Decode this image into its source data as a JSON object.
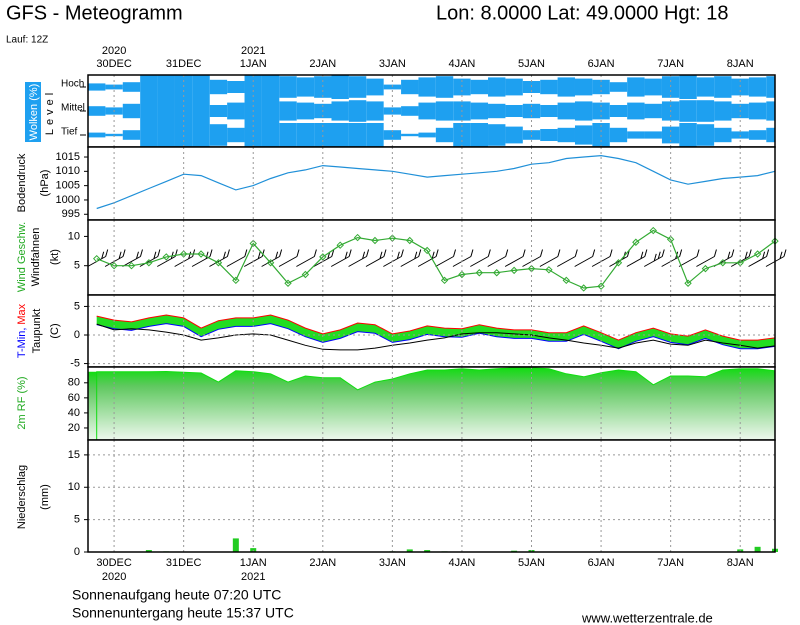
{
  "header": {
    "title": "GFS - Meteogramm",
    "location": "Lon: 8.0000 Lat: 49.0000 Hgt: 18",
    "run": "Lauf: 12Z"
  },
  "footer": {
    "sunrise": "Sonnenaufgang heute 07:20 UTC",
    "sunset": "Sonnenuntergang heute 15:37 UTC",
    "source": "www.wetterzentrale.de"
  },
  "time_axis": {
    "xlim": [
      -9,
      228
    ],
    "x": [
      -6,
      0,
      6,
      12,
      18,
      24,
      30,
      36,
      42,
      48,
      54,
      60,
      66,
      72,
      78,
      84,
      90,
      96,
      102,
      108,
      114,
      120,
      126,
      132,
      138,
      144,
      150,
      156,
      162,
      168,
      174,
      180,
      186,
      192,
      198,
      204,
      210,
      216,
      222,
      228
    ],
    "xticks": [
      {
        "value": 0,
        "label": "30DEC"
      },
      {
        "value": 24,
        "label": "31DEC"
      },
      {
        "value": 48,
        "label": "1JAN"
      },
      {
        "value": 72,
        "label": "2JAN"
      },
      {
        "value": 96,
        "label": "3JAN"
      },
      {
        "value": 120,
        "label": "4JAN"
      },
      {
        "value": 144,
        "label": "5JAN"
      },
      {
        "value": 168,
        "label": "6JAN"
      },
      {
        "value": 192,
        "label": "7JAN"
      },
      {
        "value": 216,
        "label": "8JAN"
      }
    ],
    "year_labels": [
      {
        "value": 0,
        "label": "2020"
      },
      {
        "value": 48,
        "label": "2021"
      }
    ]
  },
  "chart_data": [
    {
      "type": "clouds",
      "ylabel": [
        "Wolken (%)",
        "Level"
      ],
      "ylim": [
        0,
        100
      ],
      "grid": false,
      "series": [
        {
          "name": "Hoch",
          "color": "#1ea0f0",
          "values": [
            30,
            20,
            40,
            100,
            100,
            100,
            100,
            60,
            50,
            100,
            100,
            90,
            80,
            90,
            100,
            90,
            70,
            20,
            60,
            80,
            90,
            70,
            60,
            80,
            70,
            50,
            60,
            80,
            70,
            60,
            40,
            80,
            70,
            90,
            100,
            80,
            90,
            70,
            80,
            90
          ]
        },
        {
          "name": "Mittel",
          "color": "#1ea0f0",
          "values": [
            40,
            30,
            60,
            100,
            100,
            100,
            100,
            50,
            70,
            100,
            100,
            80,
            70,
            60,
            80,
            90,
            80,
            30,
            40,
            70,
            80,
            80,
            70,
            60,
            50,
            60,
            50,
            70,
            80,
            70,
            50,
            70,
            60,
            80,
            90,
            90,
            80,
            60,
            70,
            80
          ]
        },
        {
          "name": "Tief",
          "color": "#1ea0f0",
          "values": [
            20,
            10,
            40,
            100,
            100,
            100,
            100,
            90,
            60,
            100,
            100,
            100,
            100,
            100,
            100,
            100,
            100,
            40,
            10,
            20,
            60,
            100,
            100,
            90,
            70,
            40,
            50,
            60,
            80,
            100,
            60,
            30,
            30,
            70,
            100,
            90,
            60,
            30,
            40,
            60
          ]
        }
      ]
    },
    {
      "type": "line",
      "ylabel": [
        "Bodendruck",
        "(hPa)"
      ],
      "ylim": [
        993,
        1018.5
      ],
      "yticks": [
        995,
        1000,
        1005,
        1010,
        1015
      ],
      "grid": false,
      "color": "#2090d8",
      "values": [
        997,
        999,
        1001.5,
        1004,
        1006.5,
        1009,
        1008.5,
        1006,
        1003.5,
        1005,
        1007.5,
        1009.5,
        1010.5,
        1012,
        1011.5,
        1011,
        1010.5,
        1010,
        1009,
        1008,
        1008.5,
        1009,
        1009.5,
        1010,
        1011,
        1012.5,
        1013,
        1014.5,
        1015,
        1015.5,
        1014.5,
        1013,
        1010,
        1007,
        1005.5,
        1006.5,
        1007.5,
        1008,
        1008.5,
        1010
      ]
    },
    {
      "type": "wind",
      "ylabel": [
        "Windfahnen",
        "(kt)"
      ],
      "ylim": [
        0,
        12.8
      ],
      "yticks": [
        5,
        10
      ],
      "grid": false,
      "barbs": true,
      "markers": "diamond",
      "series": [
        {
          "name": "Wind Geschw.",
          "color": "#33aa33",
          "values": [
            6.2,
            5,
            5,
            5.5,
            6.5,
            7,
            7,
            5.5,
            2.5,
            8.8,
            5.5,
            2,
            3.5,
            6.5,
            8.5,
            9.8,
            9.3,
            9.7,
            9.3,
            7.6,
            2.5,
            3.5,
            3.8,
            3.8,
            4.2,
            4.5,
            4.3,
            2.5,
            1.2,
            1.5,
            5.5,
            9,
            11,
            9.5,
            2,
            4.5,
            5.5,
            5.5,
            7,
            9.2
          ]
        }
      ]
    },
    {
      "type": "temperature",
      "ylabel": [
        "(C)"
      ],
      "ylim": [
        -5.6,
        7
      ],
      "yticks": [
        -5,
        0,
        5
      ],
      "grid": true,
      "band_color": "#22dd22",
      "series": [
        {
          "name": "T-Min,",
          "color": "#0000ff",
          "values": [
            1.8,
            1.1,
            0.8,
            1.5,
            2,
            1.5,
            -0.3,
            1,
            1.5,
            1.5,
            2,
            1.1,
            -0.3,
            -1.3,
            -0.6,
            0.6,
            0.3,
            -1.3,
            -0.8,
            0.1,
            -0.3,
            -0.4,
            0.3,
            -0.3,
            -0.6,
            -0.6,
            -1.1,
            -1.1,
            0.1,
            -1.1,
            -2.4,
            -1.1,
            -0.3,
            -1.3,
            -1.7,
            -0.6,
            -1.7,
            -2.4,
            -2.4,
            -2
          ]
        },
        {
          "name": "Max",
          "color": "#ff0000",
          "values": [
            3.3,
            2.6,
            2.3,
            3,
            3.5,
            3,
            1.2,
            2.5,
            3,
            3,
            3.5,
            2.6,
            1.2,
            0.2,
            0.9,
            2.1,
            1.8,
            0.2,
            0.7,
            1.6,
            1.2,
            1.1,
            1.8,
            1.2,
            0.9,
            0.9,
            0.4,
            0.4,
            1.6,
            0.4,
            -0.9,
            0.4,
            1.2,
            0.2,
            -0.2,
            0.9,
            -0.2,
            -0.9,
            -0.9,
            -0.5
          ]
        },
        {
          "name": "Taupunkt",
          "color": "#000000",
          "values": [
            1.9,
            0.9,
            1.1,
            0.9,
            0.5,
            0,
            -0.9,
            -0.5,
            0,
            0.2,
            0,
            -0.9,
            -1.8,
            -2.5,
            -2.6,
            -2.6,
            -2.3,
            -1.8,
            -1.4,
            -0.9,
            -0.5,
            0.2,
            0.4,
            0.4,
            0.2,
            0,
            -0.5,
            -0.9,
            -1.4,
            -1.8,
            -2.3,
            -1.4,
            -0.9,
            -1.6,
            -1.8,
            -0.9,
            -1.4,
            -1.8,
            -2.3,
            -1.9
          ]
        }
      ]
    },
    {
      "type": "area",
      "ylabel": [
        "2m RF (%)"
      ],
      "ylim": [
        4,
        101
      ],
      "yticks": [
        20,
        40,
        60,
        80
      ],
      "grid": false,
      "color": "#11dd11",
      "values": [
        94.7,
        94.7,
        94.7,
        94.7,
        95,
        94,
        93,
        81,
        96,
        94.7,
        92,
        81,
        89,
        86.7,
        86.7,
        70.7,
        81,
        85,
        92,
        97,
        97,
        98.7,
        97,
        98.7,
        100,
        100,
        98.7,
        92,
        88,
        93.3,
        97,
        94.7,
        77.3,
        89,
        89,
        88,
        97,
        98.7,
        98.7,
        96
      ]
    },
    {
      "type": "bar",
      "ylabel": [
        "Niederschlag",
        "(mm)"
      ],
      "ylim": [
        0,
        17.3
      ],
      "yticks": [
        0,
        5,
        10,
        15
      ],
      "grid": true,
      "color": "#22cc22",
      "values": [
        0,
        0,
        0,
        0.3,
        0.1,
        0,
        0,
        0,
        2.1,
        0.6,
        0,
        0,
        0,
        0,
        0,
        0,
        0,
        0.1,
        0.4,
        0.3,
        0.1,
        0,
        0,
        0,
        0.2,
        0.3,
        0,
        0,
        0,
        0,
        0,
        0,
        0,
        0,
        0,
        0,
        0,
        0.4,
        0.8,
        0.5
      ]
    }
  ]
}
